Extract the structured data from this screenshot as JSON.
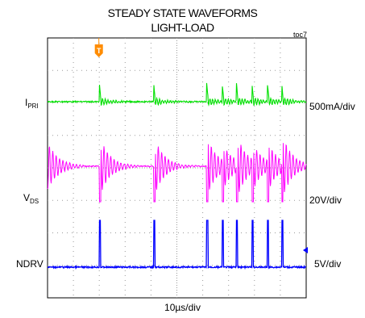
{
  "title_line1": "STEADY STATE WAVEFORMS",
  "title_line2": "LIGHT-LOAD",
  "figure_id": "toc7",
  "marker_label": "T",
  "chart_data": {
    "type": "line",
    "title": "STEADY STATE WAVEFORMS LIGHT-LOAD",
    "xlabel": "10µs/div",
    "grid": true,
    "x_divisions": 10,
    "y_divisions": 8,
    "channels": [
      {
        "name": "I",
        "name_sub": "PRI",
        "scale": "500mA/div",
        "color": "#00e000"
      },
      {
        "name": "V",
        "name_sub": "DS",
        "scale": "20V/div",
        "color": "#ff00ff"
      },
      {
        "name": "NDRV",
        "scale": "5V/div",
        "color": "#0000ff"
      }
    ],
    "switching_events_div": [
      2.0,
      4.1,
      6.15,
      6.75,
      7.3,
      7.9,
      8.5,
      9.05
    ]
  },
  "colors": {
    "ipri": "#00e000",
    "vds": "#ff00ff",
    "ndrv": "#0000ff",
    "marker": "#ff8c00",
    "grid": "#9a9a9a"
  }
}
